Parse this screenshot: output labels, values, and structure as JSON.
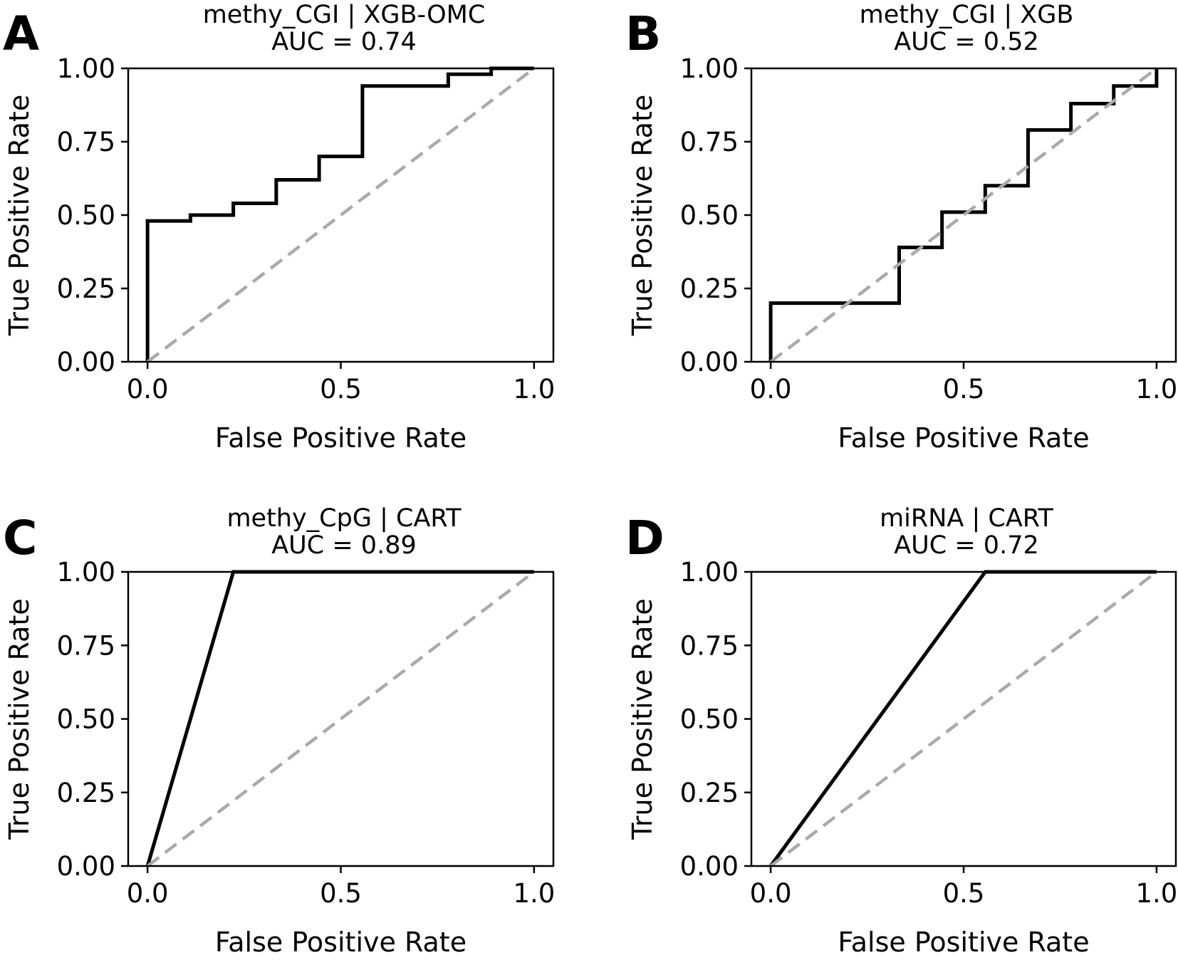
{
  "figure": {
    "panels": [
      "A",
      "B",
      "C",
      "D"
    ],
    "colors": {
      "roc_line": "#000000",
      "diagonal": "#aaaaaa",
      "frame": "#000000",
      "background": "#ffffff"
    }
  },
  "chart_data": [
    {
      "type": "line",
      "panel_label": "A",
      "title": "methy_CGI | XGB-OMC",
      "auc_label": "AUC = 0.74",
      "xlabel": "False Positive Rate",
      "ylabel": "True Positive Rate",
      "xlim": [
        -0.05,
        1.05
      ],
      "ylim": [
        0,
        1.0
      ],
      "xticks": [
        0.0,
        0.5,
        1.0
      ],
      "xtick_labels": [
        "0.0",
        "0.5",
        "1.0"
      ],
      "yticks": [
        0.0,
        0.25,
        0.5,
        0.75,
        1.0
      ],
      "ytick_labels": [
        "0.00",
        "0.25",
        "0.50",
        "0.75",
        "1.00"
      ],
      "series": [
        {
          "name": "ROC",
          "style": "solid",
          "x": [
            0.0,
            0.0,
            0.111,
            0.111,
            0.222,
            0.222,
            0.333,
            0.333,
            0.444,
            0.444,
            0.556,
            0.556,
            0.778,
            0.778,
            0.889,
            0.889,
            1.0
          ],
          "y": [
            0.0,
            0.48,
            0.48,
            0.5,
            0.5,
            0.54,
            0.54,
            0.62,
            0.62,
            0.7,
            0.7,
            0.94,
            0.94,
            0.98,
            0.98,
            1.0,
            1.0
          ]
        },
        {
          "name": "chance",
          "style": "dashed",
          "x": [
            0.0,
            1.0
          ],
          "y": [
            0.0,
            1.0
          ]
        }
      ]
    },
    {
      "type": "line",
      "panel_label": "B",
      "title": "methy_CGI | XGB",
      "auc_label": "AUC = 0.52",
      "xlabel": "False Positive Rate",
      "ylabel": "True Positive Rate",
      "xlim": [
        -0.05,
        1.05
      ],
      "ylim": [
        0,
        1.0
      ],
      "xticks": [
        0.0,
        0.5,
        1.0
      ],
      "xtick_labels": [
        "0.0",
        "0.5",
        "1.0"
      ],
      "yticks": [
        0.0,
        0.25,
        0.5,
        0.75,
        1.0
      ],
      "ytick_labels": [
        "0.00",
        "0.25",
        "0.50",
        "0.75",
        "1.00"
      ],
      "series": [
        {
          "name": "ROC",
          "style": "solid",
          "x": [
            0.0,
            0.0,
            0.333,
            0.333,
            0.444,
            0.444,
            0.556,
            0.556,
            0.667,
            0.667,
            0.778,
            0.778,
            0.889,
            0.889,
            1.0,
            1.0
          ],
          "y": [
            0.0,
            0.2,
            0.2,
            0.39,
            0.39,
            0.51,
            0.51,
            0.6,
            0.6,
            0.79,
            0.79,
            0.88,
            0.88,
            0.94,
            0.94,
            1.0
          ]
        },
        {
          "name": "chance",
          "style": "dashed",
          "x": [
            0.0,
            1.0
          ],
          "y": [
            0.0,
            1.0
          ]
        }
      ]
    },
    {
      "type": "line",
      "panel_label": "C",
      "title": "methy_CpG | CART",
      "auc_label": "AUC = 0.89",
      "xlabel": "False Positive Rate",
      "ylabel": "True Positive Rate",
      "xlim": [
        -0.05,
        1.05
      ],
      "ylim": [
        0,
        1.0
      ],
      "xticks": [
        0.0,
        0.5,
        1.0
      ],
      "xtick_labels": [
        "0.0",
        "0.5",
        "1.0"
      ],
      "yticks": [
        0.0,
        0.25,
        0.5,
        0.75,
        1.0
      ],
      "ytick_labels": [
        "0.00",
        "0.25",
        "0.50",
        "0.75",
        "1.00"
      ],
      "series": [
        {
          "name": "ROC",
          "style": "solid",
          "x": [
            0.0,
            0.222,
            1.0
          ],
          "y": [
            0.0,
            1.0,
            1.0
          ]
        },
        {
          "name": "chance",
          "style": "dashed",
          "x": [
            0.0,
            1.0
          ],
          "y": [
            0.0,
            1.0
          ]
        }
      ]
    },
    {
      "type": "line",
      "panel_label": "D",
      "title": "miRNA | CART",
      "auc_label": "AUC = 0.72",
      "xlabel": "False Positive Rate",
      "ylabel": "True Positive Rate",
      "xlim": [
        -0.05,
        1.05
      ],
      "ylim": [
        0,
        1.0
      ],
      "xticks": [
        0.0,
        0.5,
        1.0
      ],
      "xtick_labels": [
        "0.0",
        "0.5",
        "1.0"
      ],
      "yticks": [
        0.0,
        0.25,
        0.5,
        0.75,
        1.0
      ],
      "ytick_labels": [
        "0.00",
        "0.25",
        "0.50",
        "0.75",
        "1.00"
      ],
      "series": [
        {
          "name": "ROC",
          "style": "solid",
          "x": [
            0.0,
            0.556,
            1.0
          ],
          "y": [
            0.0,
            1.0,
            1.0
          ]
        },
        {
          "name": "chance",
          "style": "dashed",
          "x": [
            0.0,
            1.0
          ],
          "y": [
            0.0,
            1.0
          ]
        }
      ]
    }
  ]
}
